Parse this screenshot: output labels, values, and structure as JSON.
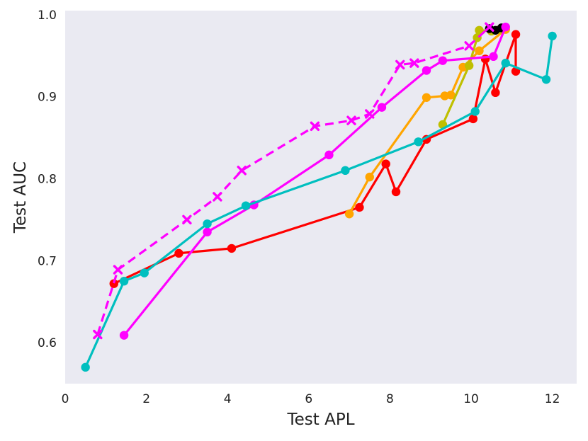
{
  "chart_data": {
    "type": "line",
    "title": "",
    "xlabel": "Test APL",
    "ylabel": "Test AUC",
    "xlim": [
      0,
      12.6
    ],
    "ylim": [
      0.55,
      1.005
    ],
    "xticks": [
      0,
      2,
      4,
      6,
      8,
      10,
      12
    ],
    "yticks": [
      0.6,
      0.7,
      0.8,
      0.9,
      1.0
    ],
    "xtick_labels": [
      "0",
      "2",
      "4",
      "6",
      "8",
      "10",
      "12"
    ],
    "ytick_labels": [
      "0.6",
      "0.7",
      "0.8",
      "0.9",
      "1.0"
    ],
    "grid": false,
    "background": "#eaeaf2",
    "series": [
      {
        "color": "#ff0000",
        "marker": "circle",
        "linestyle": "solid",
        "x": [
          1.2,
          2.8,
          4.1,
          7.25,
          7.9,
          8.15,
          8.9,
          10.05,
          10.35,
          10.6,
          11.1,
          11.1
        ],
        "y": [
          0.672,
          0.709,
          0.715,
          0.765,
          0.818,
          0.784,
          0.848,
          0.873,
          0.946,
          0.905,
          0.976,
          0.931
        ]
      },
      {
        "color": "#ffa500",
        "marker": "circle",
        "linestyle": "solid",
        "x": [
          7.0,
          7.5,
          8.9,
          9.35,
          9.5,
          9.8,
          10.2,
          10.85
        ],
        "y": [
          0.757,
          0.802,
          0.899,
          0.901,
          0.902,
          0.936,
          0.956,
          0.982
        ]
      },
      {
        "color": "#bfbf00",
        "marker": "circle",
        "linestyle": "solid",
        "x": [
          9.3,
          9.95,
          10.15,
          10.2,
          10.5,
          10.7
        ],
        "y": [
          0.866,
          0.938,
          0.972,
          0.981,
          0.98,
          0.982
        ]
      },
      {
        "color": "#000000",
        "marker": "circle",
        "linestyle": "solid",
        "x": [
          10.45,
          10.6,
          10.75
        ],
        "y": [
          0.983,
          0.981,
          0.984
        ]
      },
      {
        "color": "#ff00ff",
        "marker": "circle",
        "linestyle": "solid",
        "x": [
          1.45,
          3.5,
          4.65,
          6.5,
          7.8,
          8.9,
          9.3,
          10.55,
          10.85
        ],
        "y": [
          0.609,
          0.735,
          0.768,
          0.829,
          0.887,
          0.932,
          0.944,
          0.949,
          0.985
        ]
      },
      {
        "color": "#00bfbf",
        "marker": "circle",
        "linestyle": "solid",
        "x": [
          0.5,
          1.45,
          1.95,
          3.5,
          4.45,
          6.9,
          8.7,
          10.1,
          10.85,
          11.85,
          12.0
        ],
        "y": [
          0.57,
          0.675,
          0.685,
          0.745,
          0.767,
          0.81,
          0.845,
          0.882,
          0.941,
          0.921,
          0.974
        ]
      },
      {
        "color": "#ff00ff",
        "marker": "x",
        "linestyle": "dashed",
        "x": [
          0.8,
          1.3,
          3.0,
          3.75,
          4.35,
          6.15,
          7.05,
          7.5,
          8.25,
          8.6,
          9.95,
          10.45
        ],
        "y": [
          0.61,
          0.689,
          0.75,
          0.778,
          0.81,
          0.864,
          0.871,
          0.879,
          0.939,
          0.941,
          0.962,
          0.985
        ]
      }
    ]
  }
}
